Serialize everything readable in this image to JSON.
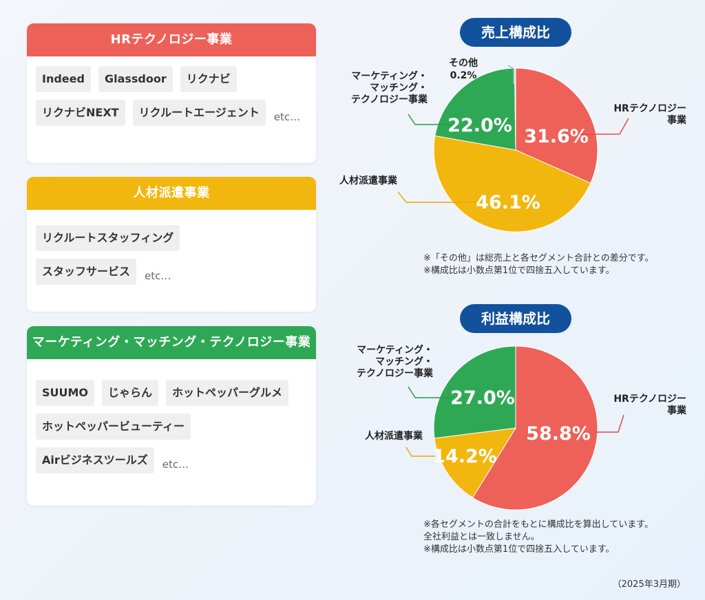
{
  "segments": {
    "hr": {
      "title": "HRテクノロジー事業",
      "color": "#ee6159",
      "services": [
        [
          "Indeed",
          "Glassdoor",
          "リクナビ"
        ],
        [
          "リクナビNEXT",
          "リクルートエージェント"
        ]
      ],
      "etc": "etc…"
    },
    "staffing": {
      "title": "人材派遣事業",
      "color": "#f2b70f",
      "services": [
        [
          "リクルートスタッフィング"
        ],
        [
          "スタッフサービス"
        ]
      ],
      "etc": "etc…"
    },
    "mm": {
      "title": "マーケティング・マッチング・テクノロジー事業",
      "color": "#2fa855",
      "services": [
        [
          "SUUMO",
          "じゃらん",
          "ホットペッパーグルメ"
        ],
        [
          "ホットペッパービューティー"
        ],
        [
          "Airビジネスツールズ"
        ]
      ],
      "etc": "etc…"
    }
  },
  "chart_data": [
    {
      "type": "pie",
      "title": "売上構成比",
      "slices": [
        {
          "label": "HRテクノロジー事業",
          "value": 31.6,
          "value_label": "31.6%",
          "color": "#ee6159"
        },
        {
          "label": "人材派遣事業",
          "value": 46.1,
          "value_label": "46.1%",
          "color": "#f2b70f"
        },
        {
          "label": "マーケティング・マッチング・テクノロジー事業",
          "value": 22.0,
          "value_label": "22.0%",
          "color": "#2fa855"
        },
        {
          "label": "その他",
          "value": 0.2,
          "value_label": "0.2%",
          "color": "#a9b4c4"
        }
      ],
      "notes": [
        "※「その他」は総売上と各セグメント合計との差分です。",
        "※構成比は小数点第1位で四捨五入しています。"
      ]
    },
    {
      "type": "pie",
      "title": "利益構成比",
      "slices": [
        {
          "label": "HRテクノロジー事業",
          "value": 58.8,
          "value_label": "58.8%",
          "color": "#ee6159"
        },
        {
          "label": "人材派遣事業",
          "value": 14.2,
          "value_label": "14.2%",
          "color": "#f2b70f"
        },
        {
          "label": "マーケティング・マッチング・テクノロジー事業",
          "value": 27.0,
          "value_label": "27.0%",
          "color": "#2fa855"
        }
      ],
      "notes": [
        "※各セグメントの合計をもとに構成比を算出しています。",
        "全社利益とは一致しません。",
        "※構成比は小数点第1位で四捨五入しています。"
      ]
    }
  ],
  "display_labels": {
    "hr_lines": [
      "HRテクノロジー",
      "事業"
    ],
    "staff_lines": [
      "人材派遣事業"
    ],
    "mm_lines": [
      "マーケティング・",
      "マッチング・",
      "テクノロジー事業"
    ],
    "other_lines": [
      "その他"
    ]
  },
  "period": "（2025年3月期）"
}
